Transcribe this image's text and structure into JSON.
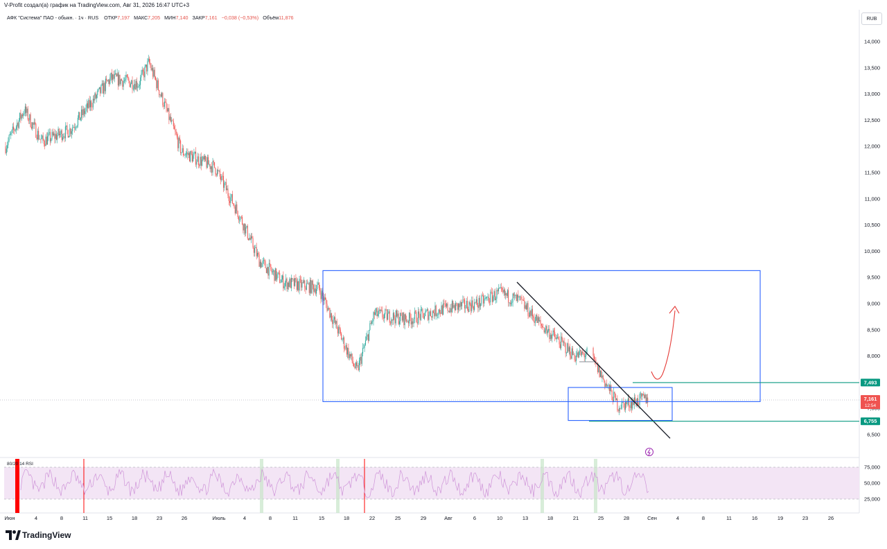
{
  "header": "V-Profit создал(а) график на TradingView.com, Авг 31, 2026 16:47 UTC+3",
  "legend": {
    "symbol": "АФК \"Система\" ПАО - обыкн. · 1ч · RUS",
    "open_label": "ОТКР",
    "open": "7,197",
    "high_label": "МАКС",
    "high": "7,205",
    "low_label": "МИН",
    "low": "7,140",
    "close_label": "ЗАКР",
    "close": "7,161",
    "change": "−0,038 (−0,53%)",
    "volume_label": "Объём",
    "volume": "11,876"
  },
  "currency": "RUB",
  "brand": "TradingView",
  "colors": {
    "up": "#26a69a",
    "down": "#ef5350",
    "box": "#2962ff",
    "trendline": "#131722",
    "level": "#089981",
    "arrow": "#e53935",
    "rsi_band": "#f3e5f5",
    "rsi_line": "#ce93d8"
  },
  "price_axis": [
    "14,000",
    "13,500",
    "13,000",
    "12,500",
    "12,000",
    "11,500",
    "11,000",
    "10,500",
    "10,000",
    "9,500",
    "9,000",
    "8,500",
    "8,000",
    "7,500",
    "7,000",
    "6,500"
  ],
  "price_tags": [
    {
      "label": "7,493",
      "value": 7493,
      "color": "#089981"
    },
    {
      "label": "7,161",
      "sub": "12:54",
      "value": 7161,
      "color": "#ef5350"
    },
    {
      "label": "6,755",
      "value": 6755,
      "color": "#089981"
    }
  ],
  "rsi": {
    "label": "80/20 14 RSI",
    "levels": [
      "75,000",
      "50,000",
      "25,000"
    ]
  },
  "time_axis": [
    "Июн",
    "4",
    "8",
    "11",
    "15",
    "18",
    "23",
    "26",
    "Июль",
    "4",
    "8",
    "11",
    "15",
    "18",
    "22",
    "25",
    "29",
    "Авг",
    "6",
    "10",
    "13",
    "18",
    "21",
    "25",
    "28",
    "Сен",
    "4",
    "8",
    "11",
    "16",
    "19",
    "23",
    "26"
  ],
  "chart_data": {
    "type": "line",
    "title": "",
    "xlabel": "",
    "ylabel": "",
    "ylim": [
      6450,
      14150
    ],
    "x": [
      "Июн",
      "4",
      "8",
      "11",
      "15",
      "18",
      "23",
      "26",
      "Июль",
      "4",
      "8",
      "11",
      "15",
      "18",
      "22",
      "25",
      "29",
      "Авг",
      "6",
      "10",
      "13",
      "18",
      "21",
      "25",
      "28"
    ],
    "series": [
      {
        "values": [
          12000,
          12700,
          12100,
          12300,
          13300,
          13200,
          13600,
          11900,
          11600,
          10700,
          9800,
          9400,
          9300,
          7700,
          8800,
          8700,
          8900,
          9000,
          9200,
          9050,
          8600,
          8000,
          8050,
          7050,
          7200
        ]
      }
    ],
    "annotations": {
      "box_large": {
        "x_from": "15",
        "x_to": "16",
        "y_from": 7130,
        "y_to": 9630
      },
      "box_small": {
        "x_from": "23",
        "x_to": "4",
        "y_from": 6770,
        "y_to": 7400
      },
      "trendline": {
        "from": [
          "12",
          9410
        ],
        "to": [
          "1",
          6430
        ]
      },
      "support": 6755,
      "resistance": 7493,
      "projection": "up",
      "current_price": 7161
    }
  }
}
